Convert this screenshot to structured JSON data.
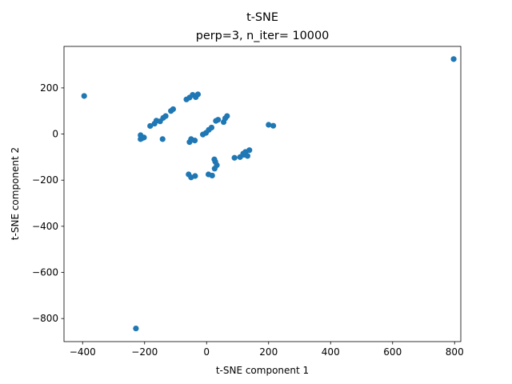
{
  "chart_data": {
    "type": "scatter",
    "title": "t-SNE",
    "subtitle": "perp=3, n_iter= 10000",
    "xlabel": "t-SNE component 1",
    "ylabel": "t-SNE component 2",
    "xlim": [
      -460,
      820
    ],
    "ylim": [
      -900,
      380
    ],
    "xticks": [
      -400,
      -200,
      0,
      200,
      400,
      600,
      800
    ],
    "xtick_labels": [
      "−400",
      "−200",
      "0",
      "200",
      "400",
      "600",
      "800"
    ],
    "yticks": [
      -800,
      -600,
      -400,
      -200,
      0,
      200
    ],
    "ytick_labels": [
      "−800",
      "−600",
      "−400",
      "−200",
      "0",
      "200"
    ],
    "grid": false,
    "marker_color": "#1f77b4",
    "x": [
      -395,
      797,
      -228,
      -213,
      -202,
      -213,
      -208,
      -182,
      -168,
      -162,
      -150,
      -140,
      -132,
      -115,
      -108,
      -142,
      -65,
      -55,
      -45,
      -35,
      -28,
      -55,
      -50,
      -38,
      -58,
      -50,
      -37,
      -12,
      -2,
      7,
      16,
      30,
      37,
      55,
      60,
      66,
      25,
      28,
      33,
      26,
      18,
      6,
      90,
      108,
      120,
      125,
      132,
      138,
      118,
      200,
      215
    ],
    "y": [
      165,
      325,
      -843,
      -5,
      -15,
      -22,
      -18,
      35,
      45,
      58,
      55,
      70,
      78,
      100,
      108,
      -22,
      150,
      158,
      170,
      160,
      172,
      -35,
      -22,
      -28,
      -175,
      -188,
      -182,
      -2,
      5,
      18,
      28,
      57,
      62,
      52,
      68,
      78,
      -110,
      -120,
      -135,
      -150,
      -180,
      -175,
      -103,
      -100,
      -90,
      -78,
      -95,
      -70,
      -85,
      40,
      36
    ]
  }
}
